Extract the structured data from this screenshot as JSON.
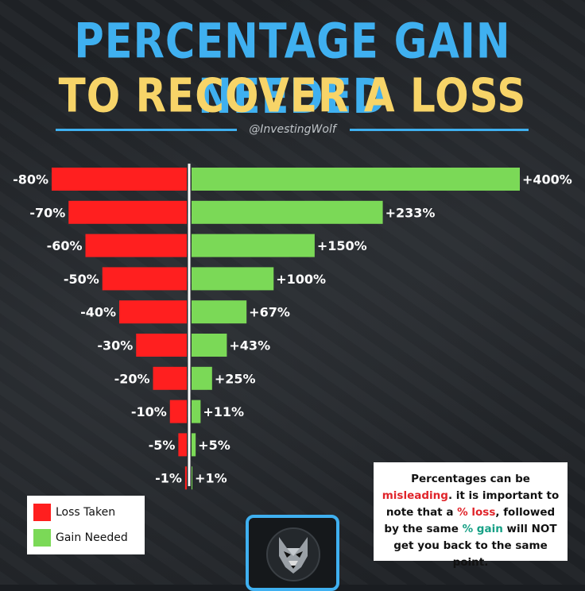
{
  "header": {
    "title_line1": "PERCENTAGE GAIN NEEDED",
    "title_line2": "TO RECOVER A LOSS",
    "handle": "@InvestingWolf"
  },
  "colors": {
    "loss": "#ff1f1f",
    "gain": "#7bd957",
    "title_blue": "#3fb0f0",
    "title_yellow": "#f7d468"
  },
  "chart_data": {
    "type": "bar",
    "orientation": "horizontal-diverging",
    "series": [
      {
        "name": "Loss Taken",
        "values": [
          -80,
          -70,
          -60,
          -50,
          -40,
          -30,
          -20,
          -10,
          -5,
          -1
        ],
        "labels": [
          "-80%",
          "-70%",
          "-60%",
          "-50%",
          "-40%",
          "-30%",
          "-20%",
          "-10%",
          "-5%",
          "-1%"
        ]
      },
      {
        "name": "Gain Needed",
        "values": [
          400,
          233,
          150,
          100,
          67,
          43,
          25,
          11,
          5,
          1
        ],
        "labels": [
          "+400%",
          "+233%",
          "+150%",
          "+100%",
          "+67%",
          "+43%",
          "+25%",
          "+11%",
          "+5%",
          "+1%"
        ]
      }
    ],
    "legend_position": "bottom-left"
  },
  "legend": {
    "loss_label": "Loss Taken",
    "gain_label": "Gain Needed"
  },
  "note": {
    "part1": "Percentages can be ",
    "misleading": "misleading",
    "part2": ". it is important to note that a ",
    "pct_loss": "% loss",
    "part3": ", followed by the same ",
    "pct_gain": "% gain",
    "part4": " will NOT get you back to the same point."
  },
  "badge": {
    "icon": "wolf-icon"
  }
}
